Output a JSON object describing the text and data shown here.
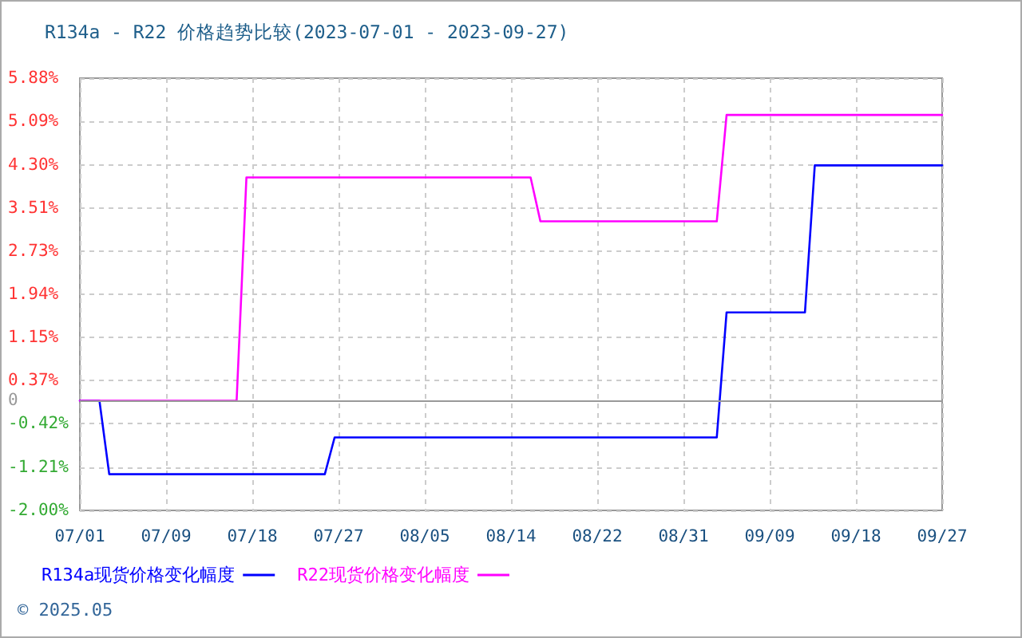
{
  "chart_data": {
    "type": "line",
    "title": "R134a - R22 价格趋势比较(2023-07-01 - 2023-09-27)",
    "series": [
      {
        "name": "R134a现货价格变化幅度",
        "color": "#0000ff",
        "x": [
          "2023-07-01",
          "2023-07-03",
          "2023-07-04",
          "2023-07-26",
          "2023-07-27",
          "2023-09-04",
          "2023-09-05",
          "2023-09-13",
          "2023-09-14",
          "2023-09-27"
        ],
        "values": [
          0,
          0,
          -1.34,
          -1.34,
          -0.67,
          -0.67,
          1.61,
          1.61,
          4.29,
          4.29
        ]
      },
      {
        "name": "R22现货价格变化幅度",
        "color": "#ff00ff",
        "x": [
          "2023-07-01",
          "2023-07-17",
          "2023-07-18",
          "2023-08-16",
          "2023-08-17",
          "2023-09-04",
          "2023-09-05",
          "2023-09-27"
        ],
        "values": [
          0,
          0,
          4.07,
          4.07,
          3.27,
          3.27,
          5.21,
          5.21
        ]
      }
    ],
    "xlim": [
      "2023-07-01",
      "2023-09-27"
    ],
    "xticks": [
      {
        "value": "2023-07-01",
        "label": "07/01"
      },
      {
        "value": "2023-07-09T19:12",
        "label": "07/09"
      },
      {
        "value": "2023-07-18T14:24",
        "label": "07/18"
      },
      {
        "value": "2023-07-27T09:36",
        "label": "07/27"
      },
      {
        "value": "2023-08-05T04:48",
        "label": "08/05"
      },
      {
        "value": "2023-08-14",
        "label": "08/14"
      },
      {
        "value": "2023-08-22T19:12",
        "label": "08/22"
      },
      {
        "value": "2023-08-31T14:24",
        "label": "08/31"
      },
      {
        "value": "2023-09-09T09:36",
        "label": "09/09"
      },
      {
        "value": "2023-09-18T04:48",
        "label": "09/18"
      },
      {
        "value": "2023-09-27",
        "label": "09/27"
      }
    ],
    "ylim": [
      -2.0,
      5.88
    ],
    "yticks": [
      {
        "value": -2.0,
        "label": "-2.00%"
      },
      {
        "value": -1.21,
        "label": "-1.21%"
      },
      {
        "value": -0.42,
        "label": "-0.42%"
      },
      0,
      {
        "value": 0.37,
        "label": "0.37%"
      },
      {
        "value": 1.15,
        "label": "1.15%"
      },
      {
        "value": 1.94,
        "label": "1.94%"
      },
      {
        "value": 2.73,
        "label": "2.73%"
      },
      {
        "value": 3.51,
        "label": "3.51%"
      },
      {
        "value": 4.3,
        "label": "4.30%"
      },
      {
        "value": 5.09,
        "label": "5.09%"
      },
      {
        "value": 5.88,
        "label": "5.88%"
      }
    ],
    "ref_lines": [
      {
        "axis": "y",
        "value": 0,
        "color": "#999999"
      }
    ],
    "grid": true,
    "legend": "bottom left",
    "annotations": [
      "© 2025.05"
    ]
  }
}
